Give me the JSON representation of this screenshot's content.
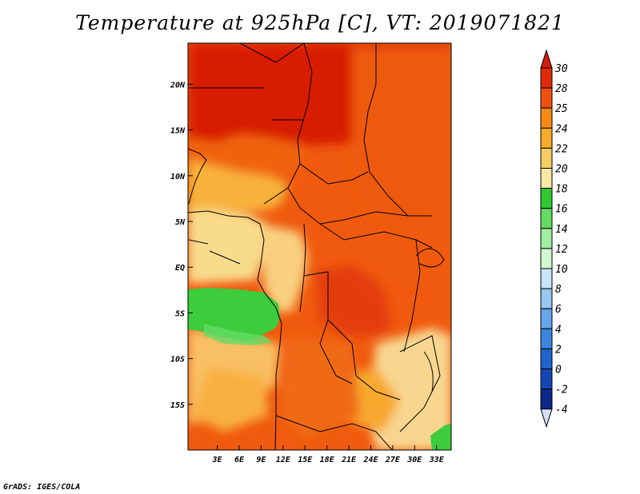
{
  "title": "Temperature at 925hPa [C], VT: 2019071821",
  "footer": "GrADS: IGES/COLA",
  "map": {
    "lon_range": [
      -1,
      35
    ],
    "lat_range": [
      -20,
      24.5
    ],
    "lat_ticks": [
      {
        "value": 20,
        "label": "20N"
      },
      {
        "value": 15,
        "label": "15N"
      },
      {
        "value": 10,
        "label": "10N"
      },
      {
        "value": 5,
        "label": "5N"
      },
      {
        "value": 0,
        "label": "EQ"
      },
      {
        "value": -5,
        "label": "5S"
      },
      {
        "value": -10,
        "label": "10S"
      },
      {
        "value": -15,
        "label": "15S"
      }
    ],
    "lon_ticks": [
      {
        "value": 3,
        "label": "3E"
      },
      {
        "value": 6,
        "label": "6E"
      },
      {
        "value": 9,
        "label": "9E"
      },
      {
        "value": 12,
        "label": "12E"
      },
      {
        "value": 15,
        "label": "15E"
      },
      {
        "value": 18,
        "label": "18E"
      },
      {
        "value": 21,
        "label": "21E"
      },
      {
        "value": 24,
        "label": "24E"
      },
      {
        "value": 27,
        "label": "27E"
      },
      {
        "value": 30,
        "label": "30E"
      },
      {
        "value": 33,
        "label": "33E"
      }
    ]
  },
  "colorbar": {
    "labels": [
      "30",
      "28",
      "25",
      "24",
      "22",
      "20",
      "18",
      "16",
      "14",
      "12",
      "10",
      "8",
      "6",
      "4",
      "2",
      "0",
      "-2",
      "-4"
    ],
    "colors": [
      "#e02a0a",
      "#f0500e",
      "#f88a14",
      "#f8aa2a",
      "#f8cc62",
      "#f8e8a0",
      "#32c832",
      "#64dc64",
      "#a0eea0",
      "#d2f8d2",
      "#c8e4fa",
      "#96c8f0",
      "#64a6e8",
      "#3c86e0",
      "#1e64cc",
      "#1446b4",
      "#0c2888",
      "#0a0a78"
    ],
    "top_color": "#d21e0a",
    "bottom_color": "#d8dcf8"
  }
}
